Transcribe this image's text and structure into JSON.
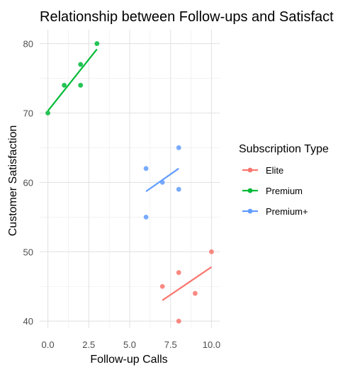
{
  "chart_data": {
    "type": "scatter",
    "title": "Relationship between Follow-ups and Satisfact",
    "xlabel": "Follow-up Calls",
    "ylabel": "Customer Satisfaction",
    "xlim": [
      -0.5,
      10.5
    ],
    "ylim": [
      39,
      82
    ],
    "x_ticks": [
      0.0,
      2.5,
      5.0,
      7.5,
      10.0
    ],
    "x_tick_labels": [
      "0.0",
      "2.5",
      "5.0",
      "7.5",
      "10.0"
    ],
    "y_ticks": [
      40,
      50,
      60,
      70,
      80
    ],
    "y_tick_labels": [
      "40",
      "50",
      "60",
      "70",
      "80"
    ],
    "grid": true,
    "legend": {
      "title": "Subscription Type",
      "position": "right"
    },
    "series": [
      {
        "name": "Elite",
        "color": "#F8766D",
        "points": [
          [
            7,
            45
          ],
          [
            8,
            47
          ],
          [
            8,
            40
          ],
          [
            9,
            44
          ],
          [
            10,
            50
          ]
        ],
        "fit_line": [
          [
            7,
            43.0
          ],
          [
            10,
            47.8
          ]
        ]
      },
      {
        "name": "Premium",
        "color": "#00BA38",
        "points": [
          [
            0,
            70
          ],
          [
            1,
            74
          ],
          [
            2,
            77
          ],
          [
            2,
            74
          ],
          [
            3,
            80
          ]
        ],
        "fit_line": [
          [
            0,
            70.3
          ],
          [
            3,
            79.2
          ]
        ]
      },
      {
        "name": "Premium+",
        "color": "#619CFF",
        "points": [
          [
            6,
            62
          ],
          [
            6,
            55
          ],
          [
            7,
            60
          ],
          [
            8,
            65
          ],
          [
            8,
            59
          ]
        ],
        "fit_line": [
          [
            6,
            58.7
          ],
          [
            8,
            62.0
          ]
        ]
      }
    ]
  }
}
